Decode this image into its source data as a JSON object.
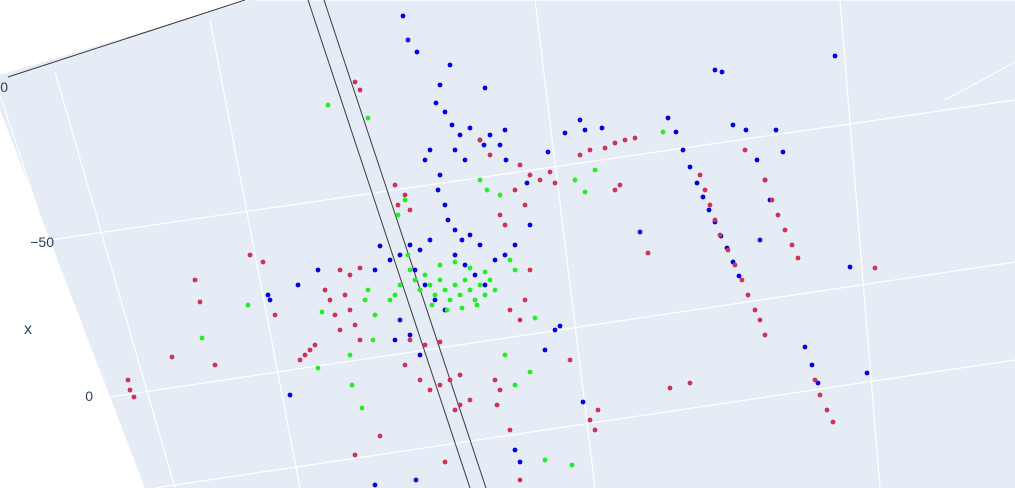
{
  "chart_data": {
    "type": "scatter",
    "title": "",
    "background_color": "#ffffff",
    "plane_color": "#e5ecf6",
    "grid": true,
    "legend": "none",
    "axes": {
      "x": {
        "label": "x",
        "tick_labels": [
          "0",
          "−50",
          "0"
        ]
      }
    },
    "series": [
      {
        "color": "#0000e0",
        "values": [
          {
            "x": 403,
            "y": 16
          },
          {
            "x": 408,
            "y": 40
          },
          {
            "x": 417,
            "y": 52
          },
          {
            "x": 440,
            "y": 85
          },
          {
            "x": 450,
            "y": 65
          },
          {
            "x": 436,
            "y": 103
          },
          {
            "x": 445,
            "y": 112
          },
          {
            "x": 452,
            "y": 125
          },
          {
            "x": 460,
            "y": 135
          },
          {
            "x": 470,
            "y": 128
          },
          {
            "x": 480,
            "y": 140
          },
          {
            "x": 490,
            "y": 135
          },
          {
            "x": 500,
            "y": 145
          },
          {
            "x": 455,
            "y": 150
          },
          {
            "x": 465,
            "y": 160
          },
          {
            "x": 430,
            "y": 150
          },
          {
            "x": 425,
            "y": 160
          },
          {
            "x": 440,
            "y": 175
          },
          {
            "x": 438,
            "y": 190
          },
          {
            "x": 445,
            "y": 205
          },
          {
            "x": 448,
            "y": 220
          },
          {
            "x": 455,
            "y": 230
          },
          {
            "x": 462,
            "y": 240
          },
          {
            "x": 470,
            "y": 235
          },
          {
            "x": 480,
            "y": 245
          },
          {
            "x": 430,
            "y": 240
          },
          {
            "x": 420,
            "y": 250
          },
          {
            "x": 410,
            "y": 245
          },
          {
            "x": 400,
            "y": 255
          },
          {
            "x": 390,
            "y": 260
          },
          {
            "x": 380,
            "y": 246
          },
          {
            "x": 375,
            "y": 270
          },
          {
            "x": 415,
            "y": 270
          },
          {
            "x": 425,
            "y": 285
          },
          {
            "x": 435,
            "y": 300
          },
          {
            "x": 445,
            "y": 310
          },
          {
            "x": 455,
            "y": 255
          },
          {
            "x": 465,
            "y": 265
          },
          {
            "x": 475,
            "y": 275
          },
          {
            "x": 485,
            "y": 285
          },
          {
            "x": 495,
            "y": 260
          },
          {
            "x": 505,
            "y": 255
          },
          {
            "x": 515,
            "y": 245
          },
          {
            "x": 400,
            "y": 320
          },
          {
            "x": 395,
            "y": 340
          },
          {
            "x": 410,
            "y": 335
          },
          {
            "x": 420,
            "y": 355
          },
          {
            "x": 270,
            "y": 300
          },
          {
            "x": 268,
            "y": 295
          },
          {
            "x": 298,
            "y": 285
          },
          {
            "x": 318,
            "y": 270
          },
          {
            "x": 555,
            "y": 330
          },
          {
            "x": 560,
            "y": 326
          },
          {
            "x": 545,
            "y": 350
          },
          {
            "x": 530,
            "y": 225
          },
          {
            "x": 548,
            "y": 152
          },
          {
            "x": 580,
            "y": 120
          },
          {
            "x": 585,
            "y": 130
          },
          {
            "x": 602,
            "y": 128
          },
          {
            "x": 565,
            "y": 133
          },
          {
            "x": 527,
            "y": 183
          },
          {
            "x": 715,
            "y": 70
          },
          {
            "x": 722,
            "y": 72
          },
          {
            "x": 835,
            "y": 56
          },
          {
            "x": 733,
            "y": 125
          },
          {
            "x": 746,
            "y": 130
          },
          {
            "x": 776,
            "y": 130
          },
          {
            "x": 757,
            "y": 160
          },
          {
            "x": 783,
            "y": 152
          },
          {
            "x": 668,
            "y": 118
          },
          {
            "x": 676,
            "y": 132
          },
          {
            "x": 683,
            "y": 150
          },
          {
            "x": 690,
            "y": 167
          },
          {
            "x": 697,
            "y": 183
          },
          {
            "x": 703,
            "y": 197
          },
          {
            "x": 709,
            "y": 210
          },
          {
            "x": 715,
            "y": 222
          },
          {
            "x": 721,
            "y": 236
          },
          {
            "x": 727,
            "y": 248
          },
          {
            "x": 733,
            "y": 262
          },
          {
            "x": 739,
            "y": 276
          },
          {
            "x": 760,
            "y": 240
          },
          {
            "x": 765,
            "y": 180
          },
          {
            "x": 770,
            "y": 200
          },
          {
            "x": 850,
            "y": 267
          },
          {
            "x": 805,
            "y": 347
          },
          {
            "x": 812,
            "y": 365
          },
          {
            "x": 818,
            "y": 383
          },
          {
            "x": 867,
            "y": 373
          },
          {
            "x": 640,
            "y": 232
          },
          {
            "x": 485,
            "y": 88
          },
          {
            "x": 290,
            "y": 395
          },
          {
            "x": 375,
            "y": 485
          },
          {
            "x": 416,
            "y": 480
          },
          {
            "x": 515,
            "y": 450
          },
          {
            "x": 520,
            "y": 462
          },
          {
            "x": 583,
            "y": 402
          },
          {
            "x": 484,
            "y": 145
          },
          {
            "x": 506,
            "y": 160
          },
          {
            "x": 505,
            "y": 130
          }
        ]
      },
      {
        "color": "#cc3355",
        "values": [
          {
            "x": 355,
            "y": 82
          },
          {
            "x": 360,
            "y": 90
          },
          {
            "x": 395,
            "y": 185
          },
          {
            "x": 405,
            "y": 195
          },
          {
            "x": 410,
            "y": 210
          },
          {
            "x": 398,
            "y": 205
          },
          {
            "x": 520,
            "y": 165
          },
          {
            "x": 530,
            "y": 175
          },
          {
            "x": 540,
            "y": 180
          },
          {
            "x": 550,
            "y": 172
          },
          {
            "x": 515,
            "y": 190
          },
          {
            "x": 525,
            "y": 205
          },
          {
            "x": 500,
            "y": 215
          },
          {
            "x": 505,
            "y": 225
          },
          {
            "x": 580,
            "y": 155
          },
          {
            "x": 590,
            "y": 150
          },
          {
            "x": 605,
            "y": 148
          },
          {
            "x": 615,
            "y": 143
          },
          {
            "x": 625,
            "y": 140
          },
          {
            "x": 635,
            "y": 138
          },
          {
            "x": 620,
            "y": 185
          },
          {
            "x": 615,
            "y": 190
          },
          {
            "x": 555,
            "y": 183
          },
          {
            "x": 340,
            "y": 270
          },
          {
            "x": 350,
            "y": 275
          },
          {
            "x": 360,
            "y": 268
          },
          {
            "x": 345,
            "y": 295
          },
          {
            "x": 350,
            "y": 310
          },
          {
            "x": 355,
            "y": 325
          },
          {
            "x": 360,
            "y": 340
          },
          {
            "x": 330,
            "y": 300
          },
          {
            "x": 335,
            "y": 315
          },
          {
            "x": 340,
            "y": 330
          },
          {
            "x": 325,
            "y": 290
          },
          {
            "x": 310,
            "y": 350
          },
          {
            "x": 315,
            "y": 345
          },
          {
            "x": 300,
            "y": 360
          },
          {
            "x": 305,
            "y": 355
          },
          {
            "x": 405,
            "y": 365
          },
          {
            "x": 420,
            "y": 380
          },
          {
            "x": 430,
            "y": 390
          },
          {
            "x": 440,
            "y": 385
          },
          {
            "x": 450,
            "y": 380
          },
          {
            "x": 460,
            "y": 375
          },
          {
            "x": 455,
            "y": 410
          },
          {
            "x": 460,
            "y": 405
          },
          {
            "x": 470,
            "y": 400
          },
          {
            "x": 495,
            "y": 380
          },
          {
            "x": 500,
            "y": 390
          },
          {
            "x": 497,
            "y": 405
          },
          {
            "x": 410,
            "y": 340
          },
          {
            "x": 425,
            "y": 345
          },
          {
            "x": 440,
            "y": 342
          },
          {
            "x": 510,
            "y": 310
          },
          {
            "x": 520,
            "y": 320
          },
          {
            "x": 525,
            "y": 300
          },
          {
            "x": 530,
            "y": 270
          },
          {
            "x": 700,
            "y": 175
          },
          {
            "x": 705,
            "y": 190
          },
          {
            "x": 710,
            "y": 205
          },
          {
            "x": 715,
            "y": 220
          },
          {
            "x": 720,
            "y": 235
          },
          {
            "x": 728,
            "y": 250
          },
          {
            "x": 735,
            "y": 265
          },
          {
            "x": 742,
            "y": 280
          },
          {
            "x": 748,
            "y": 295
          },
          {
            "x": 755,
            "y": 310
          },
          {
            "x": 760,
            "y": 320
          },
          {
            "x": 765,
            "y": 180
          },
          {
            "x": 772,
            "y": 200
          },
          {
            "x": 778,
            "y": 215
          },
          {
            "x": 785,
            "y": 230
          },
          {
            "x": 792,
            "y": 245
          },
          {
            "x": 798,
            "y": 258
          },
          {
            "x": 745,
            "y": 150
          },
          {
            "x": 875,
            "y": 268
          },
          {
            "x": 815,
            "y": 380
          },
          {
            "x": 820,
            "y": 395
          },
          {
            "x": 827,
            "y": 410
          },
          {
            "x": 833,
            "y": 422
          },
          {
            "x": 128,
            "y": 380
          },
          {
            "x": 130,
            "y": 390
          },
          {
            "x": 134,
            "y": 397
          },
          {
            "x": 172,
            "y": 357
          },
          {
            "x": 200,
            "y": 302
          },
          {
            "x": 195,
            "y": 280
          },
          {
            "x": 250,
            "y": 255
          },
          {
            "x": 263,
            "y": 262
          },
          {
            "x": 275,
            "y": 315
          },
          {
            "x": 215,
            "y": 365
          },
          {
            "x": 590,
            "y": 420
          },
          {
            "x": 595,
            "y": 430
          },
          {
            "x": 598,
            "y": 410
          },
          {
            "x": 670,
            "y": 388
          },
          {
            "x": 690,
            "y": 383
          },
          {
            "x": 765,
            "y": 335
          },
          {
            "x": 648,
            "y": 253
          },
          {
            "x": 570,
            "y": 360
          },
          {
            "x": 510,
            "y": 430
          },
          {
            "x": 355,
            "y": 455
          },
          {
            "x": 380,
            "y": 436
          },
          {
            "x": 520,
            "y": 480
          },
          {
            "x": 445,
            "y": 462
          },
          {
            "x": 480,
            "y": 140
          },
          {
            "x": 490,
            "y": 155
          }
        ]
      },
      {
        "color": "#22ee22",
        "values": [
          {
            "x": 328,
            "y": 105
          },
          {
            "x": 368,
            "y": 118
          },
          {
            "x": 405,
            "y": 200
          },
          {
            "x": 410,
            "y": 270
          },
          {
            "x": 415,
            "y": 280
          },
          {
            "x": 420,
            "y": 290
          },
          {
            "x": 425,
            "y": 275
          },
          {
            "x": 430,
            "y": 285
          },
          {
            "x": 435,
            "y": 295
          },
          {
            "x": 440,
            "y": 280
          },
          {
            "x": 445,
            "y": 290
          },
          {
            "x": 450,
            "y": 300
          },
          {
            "x": 455,
            "y": 285
          },
          {
            "x": 460,
            "y": 295
          },
          {
            "x": 465,
            "y": 280
          },
          {
            "x": 470,
            "y": 290
          },
          {
            "x": 475,
            "y": 300
          },
          {
            "x": 480,
            "y": 285
          },
          {
            "x": 485,
            "y": 295
          },
          {
            "x": 490,
            "y": 280
          },
          {
            "x": 495,
            "y": 290
          },
          {
            "x": 400,
            "y": 285
          },
          {
            "x": 395,
            "y": 295
          },
          {
            "x": 390,
            "y": 300
          },
          {
            "x": 432,
            "y": 305
          },
          {
            "x": 447,
            "y": 310
          },
          {
            "x": 462,
            "y": 308
          },
          {
            "x": 477,
            "y": 305
          },
          {
            "x": 440,
            "y": 265
          },
          {
            "x": 455,
            "y": 262
          },
          {
            "x": 470,
            "y": 268
          },
          {
            "x": 485,
            "y": 272
          },
          {
            "x": 510,
            "y": 260
          },
          {
            "x": 515,
            "y": 270
          },
          {
            "x": 480,
            "y": 180
          },
          {
            "x": 487,
            "y": 190
          },
          {
            "x": 500,
            "y": 195
          },
          {
            "x": 575,
            "y": 180
          },
          {
            "x": 585,
            "y": 192
          },
          {
            "x": 595,
            "y": 170
          },
          {
            "x": 663,
            "y": 132
          },
          {
            "x": 248,
            "y": 305
          },
          {
            "x": 322,
            "y": 312
          },
          {
            "x": 350,
            "y": 355
          },
          {
            "x": 368,
            "y": 290
          },
          {
            "x": 373,
            "y": 340
          },
          {
            "x": 318,
            "y": 368
          },
          {
            "x": 352,
            "y": 385
          },
          {
            "x": 362,
            "y": 408
          },
          {
            "x": 505,
            "y": 355
          },
          {
            "x": 515,
            "y": 385
          },
          {
            "x": 530,
            "y": 372
          },
          {
            "x": 545,
            "y": 460
          },
          {
            "x": 572,
            "y": 465
          },
          {
            "x": 535,
            "y": 318
          },
          {
            "x": 408,
            "y": 255
          },
          {
            "x": 398,
            "y": 215
          },
          {
            "x": 365,
            "y": 300
          },
          {
            "x": 375,
            "y": 315
          },
          {
            "x": 202,
            "y": 338
          }
        ]
      }
    ]
  }
}
